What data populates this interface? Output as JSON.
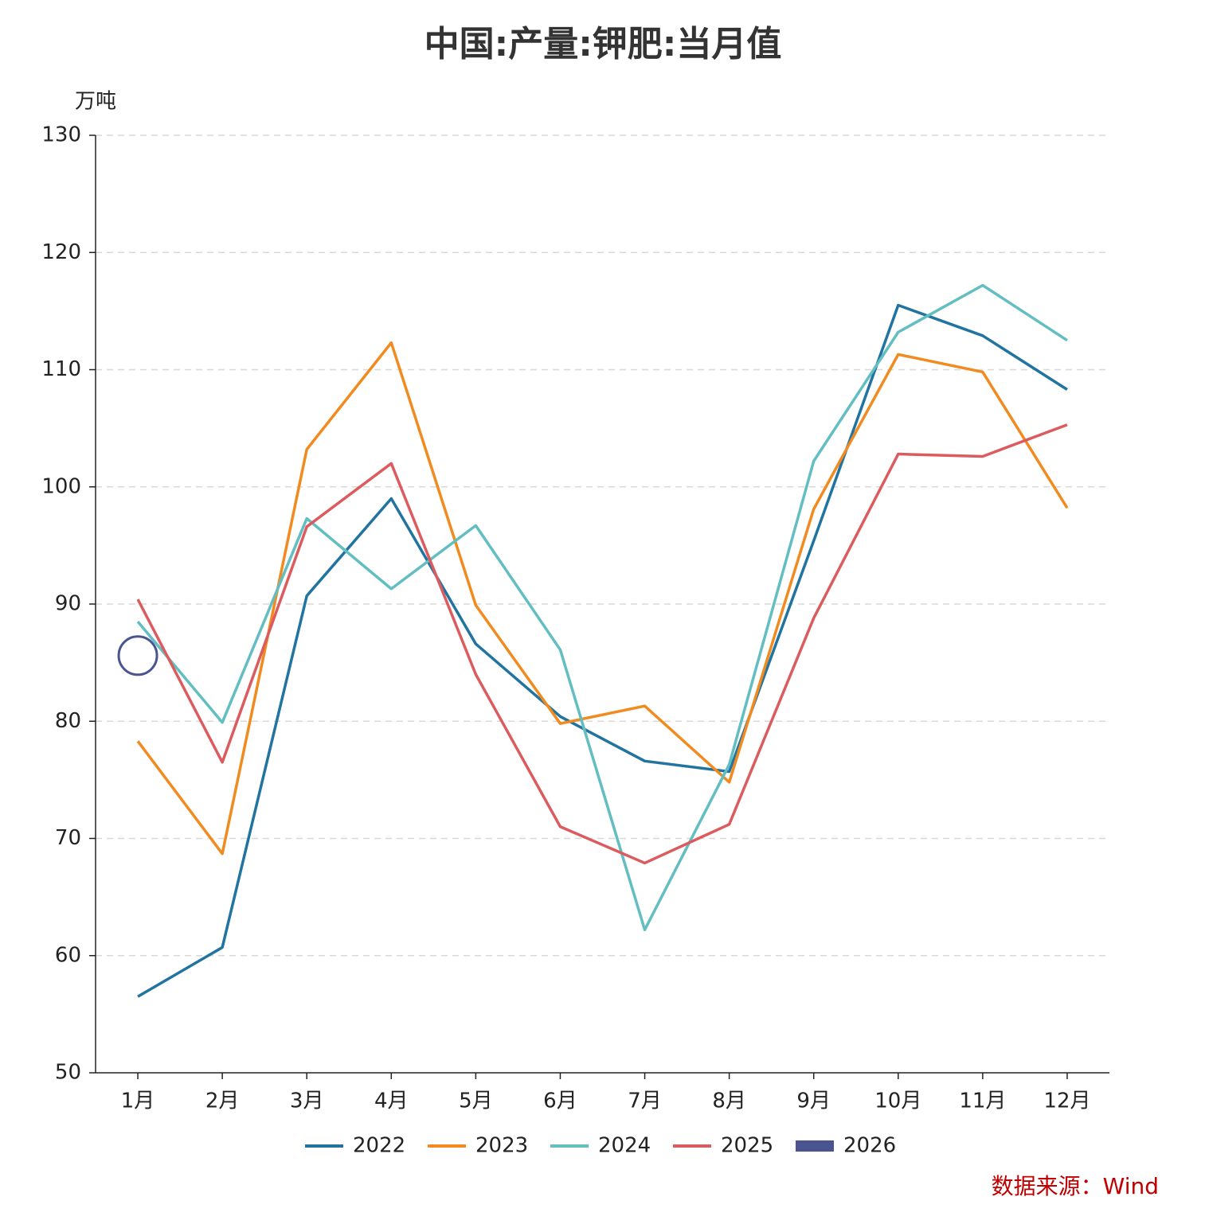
{
  "chart_data": {
    "type": "line",
    "title": "中国:产量:钾肥:当月值",
    "y_label": "万吨",
    "source": "数据来源：Wind",
    "categories": [
      "1月",
      "2月",
      "3月",
      "4月",
      "5月",
      "6月",
      "7月",
      "8月",
      "9月",
      "10月",
      "11月",
      "12月"
    ],
    "series": [
      {
        "name": "2022",
        "color": "#2274a0",
        "values": [
          56.5,
          60.7,
          90.7,
          99.0,
          86.6,
          80.4,
          76.6,
          75.7,
          95.4,
          115.5,
          112.9,
          108.3
        ]
      },
      {
        "name": "2023",
        "color": "#f28b1f",
        "values": [
          78.3,
          68.7,
          103.2,
          112.3,
          89.9,
          79.8,
          81.3,
          74.8,
          98.1,
          111.3,
          109.8,
          98.2
        ]
      },
      {
        "name": "2024",
        "color": "#62bec1",
        "values": [
          88.5,
          79.9,
          97.3,
          91.3,
          96.7,
          86.1,
          62.2,
          76.3,
          102.2,
          113.2,
          117.2,
          112.5
        ]
      },
      {
        "name": "2025",
        "color": "#dc5b5e",
        "values": [
          90.4,
          76.5,
          96.6,
          102.0,
          84.0,
          71.0,
          67.9,
          71.2,
          88.8,
          102.8,
          102.6,
          105.3
        ]
      },
      {
        "name": "2026",
        "color": "#4a5490",
        "values": [
          85.6,
          null,
          null,
          null,
          null,
          null,
          null,
          null,
          null,
          null,
          null,
          null
        ]
      }
    ],
    "ylim": [
      50,
      130
    ],
    "yticks": [
      50,
      60,
      70,
      80,
      90,
      100,
      110,
      120,
      130
    ],
    "grid": true,
    "legend": "bottom"
  }
}
